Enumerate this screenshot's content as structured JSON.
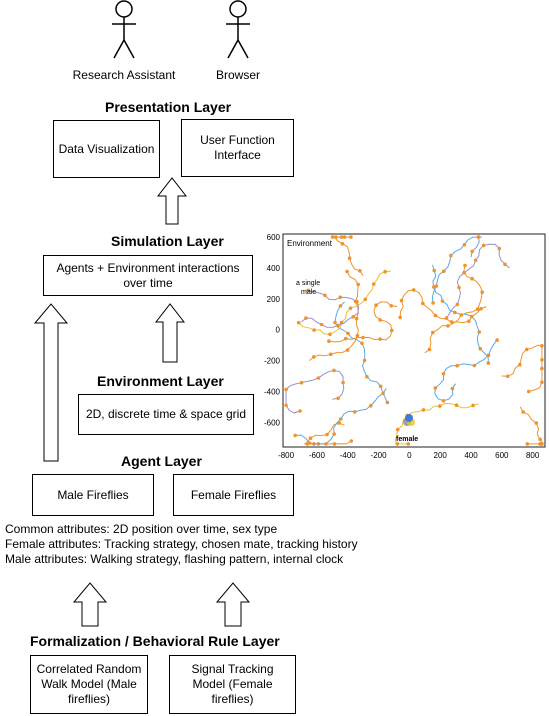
{
  "actors": [
    {
      "label": "Research Assistant"
    },
    {
      "label": "Browser"
    }
  ],
  "layers": {
    "presentation": {
      "title": "Presentation Layer",
      "boxes": [
        "Data Visualization",
        "User Function\nInterface"
      ]
    },
    "simulation": {
      "title": "Simulation Layer",
      "boxes": [
        "Agents + Environment interactions\nover time"
      ]
    },
    "environment": {
      "title": "Environment Layer",
      "boxes": [
        "2D, discrete time & space grid"
      ]
    },
    "agent": {
      "title": "Agent Layer",
      "boxes": [
        "Male Fireflies",
        "Female Fireflies"
      ],
      "attributes": [
        "Common attributes: 2D position over time, sex type",
        "Female attributes: Tracking strategy, chosen mate, tracking history",
        "Male attributes: Walking strategy, flashing pattern, internal clock"
      ]
    },
    "formalization": {
      "title": "Formalization / Behavioral Rule Layer",
      "boxes": [
        "Correlated Random\nWalk Model (Male\nfireflies)",
        "Signal Tracking\nModel (Female\nfireflies)"
      ]
    }
  },
  "chart_data": {
    "type": "line",
    "title": "",
    "xlabel": "",
    "ylabel": "",
    "xlim": [
      -820,
      880
    ],
    "ylim": [
      -760,
      620
    ],
    "xticks": [
      -800,
      -600,
      -400,
      -200,
      0,
      200,
      400,
      600,
      800
    ],
    "yticks": [
      600,
      400,
      200,
      0,
      -200,
      -400,
      -600
    ],
    "annotations": [
      "Environment",
      "a single\nmale",
      "female"
    ],
    "colors": {
      "orange": "#f0932b",
      "blue": "#5aa9e6",
      "purple": "#9b8fd0",
      "yellow": "#e8c22a",
      "female_blue": "#3d7be0"
    }
  }
}
